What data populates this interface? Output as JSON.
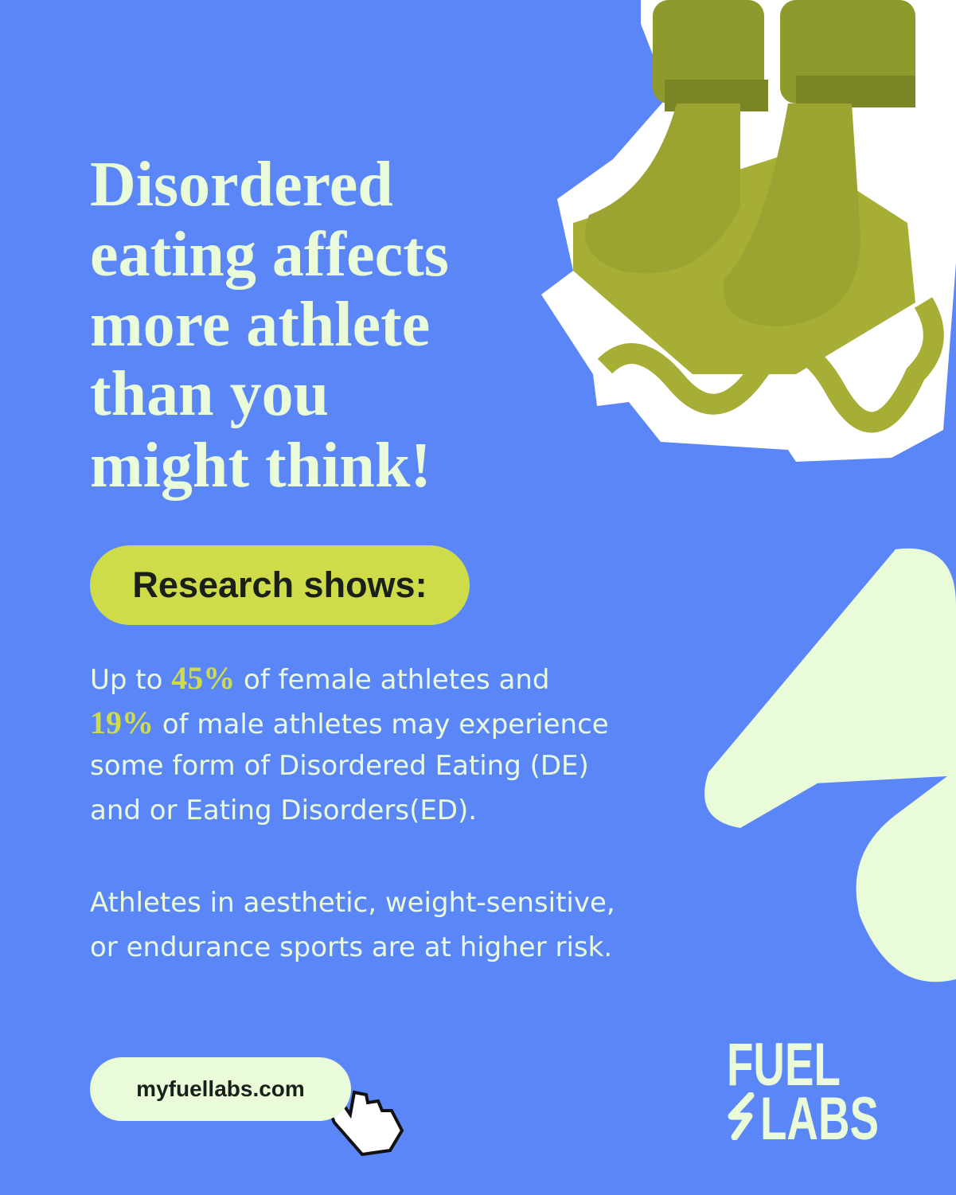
{
  "headline": {
    "lines": [
      "Disordered",
      "eating affects",
      "more athlete",
      "than you",
      "might think!"
    ]
  },
  "label": "Research shows:",
  "stats": {
    "lead": "Up to",
    "female_stat": "45%",
    "female_text": "of female athletes and",
    "male_stat": "19%",
    "male_text": "of male athletes may experience",
    "line3": "some form of Disordered Eating (DE)",
    "line4": "and or Eating Disorders(ED)."
  },
  "risk": {
    "lines": [
      "Athletes in aesthetic, weight-sensitive,",
      "or endurance sports are at higher risk."
    ]
  },
  "button": "myfuellabs.com",
  "logo": {
    "top": "FUEL",
    "bottom": "LABS"
  }
}
